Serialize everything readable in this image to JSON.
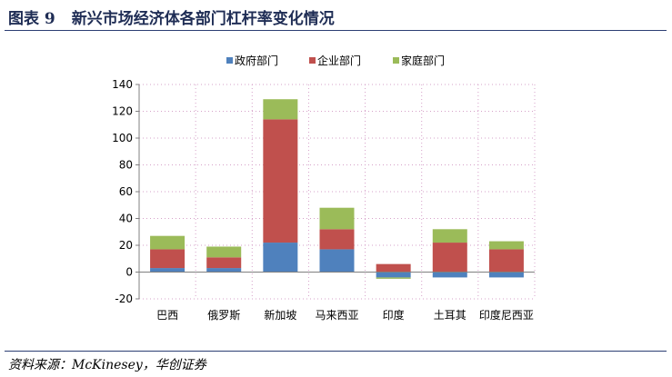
{
  "figure": {
    "label": "图表 9",
    "title": "新兴市场经济体各部门杠杆率变化情况",
    "source": "资料来源：McKinesey，华创证券"
  },
  "chart_data": {
    "type": "bar",
    "stacked": true,
    "title": "新兴市场经济体各部门杠杆率变化情况",
    "xlabel": "",
    "ylabel": "",
    "ylim": [
      -20,
      140
    ],
    "yticks": [
      -20,
      0,
      20,
      40,
      60,
      80,
      100,
      120,
      140
    ],
    "grid": "dotted",
    "legend_position": "top",
    "categories": [
      "巴西",
      "俄罗斯",
      "新加坡",
      "马来西亚",
      "印度",
      "土耳其",
      "印度尼西亚"
    ],
    "series": [
      {
        "name": "政府部门",
        "color": "#4f81bd",
        "values": [
          3,
          3,
          22,
          17,
          -4,
          -4,
          -4
        ]
      },
      {
        "name": "企业部门",
        "color": "#c0504d",
        "values": [
          14,
          8,
          92,
          15,
          6,
          22,
          17
        ]
      },
      {
        "name": "家庭部门",
        "color": "#9bbb59",
        "values": [
          10,
          8,
          15,
          16,
          -1,
          10,
          6
        ]
      }
    ]
  }
}
